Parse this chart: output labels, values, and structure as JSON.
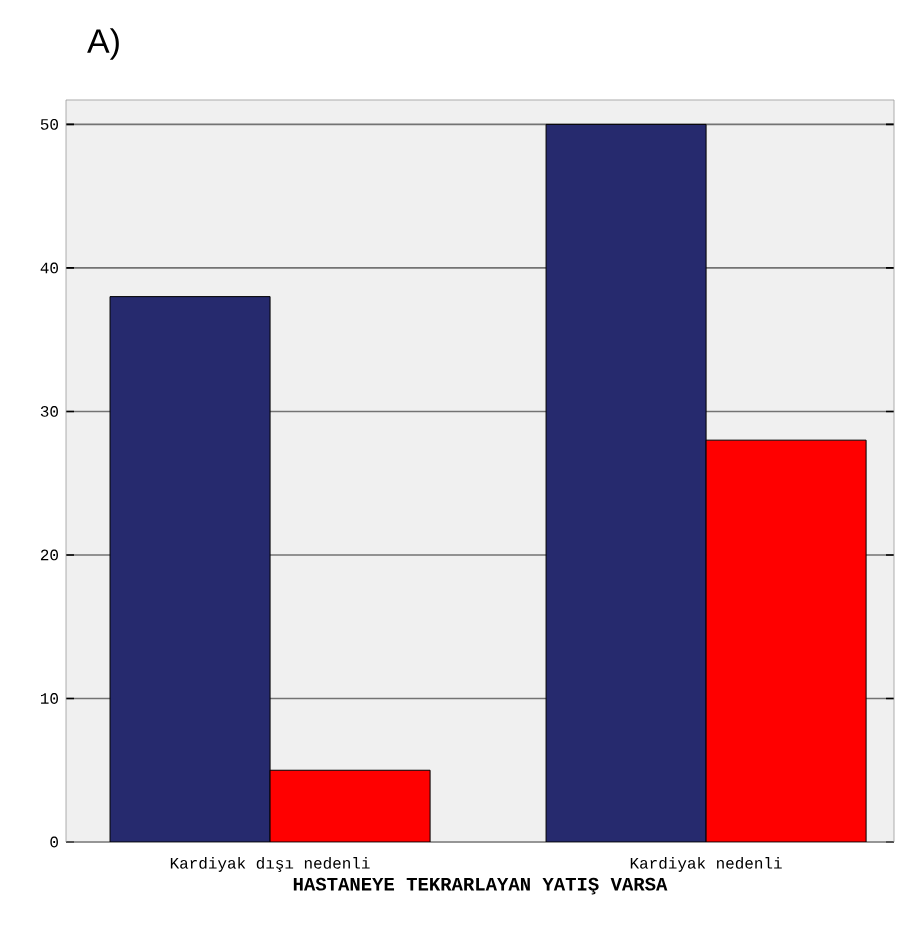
{
  "chart_data": {
    "type": "bar",
    "title": "A)",
    "xlabel": "HASTANEYE TEKRARLAYAN YATIŞ VARSA",
    "categories": [
      "Kardiyak dışı nedenli",
      "Kardiyak nedenli"
    ],
    "series": [
      {
        "color": "#262a6e",
        "values": [
          38,
          50
        ]
      },
      {
        "color": "#ff0000",
        "values": [
          5,
          28
        ]
      }
    ],
    "ylim": [
      0,
      51.7
    ],
    "yticks": [
      0,
      10,
      20,
      30,
      40,
      50
    ],
    "grid": "y"
  }
}
